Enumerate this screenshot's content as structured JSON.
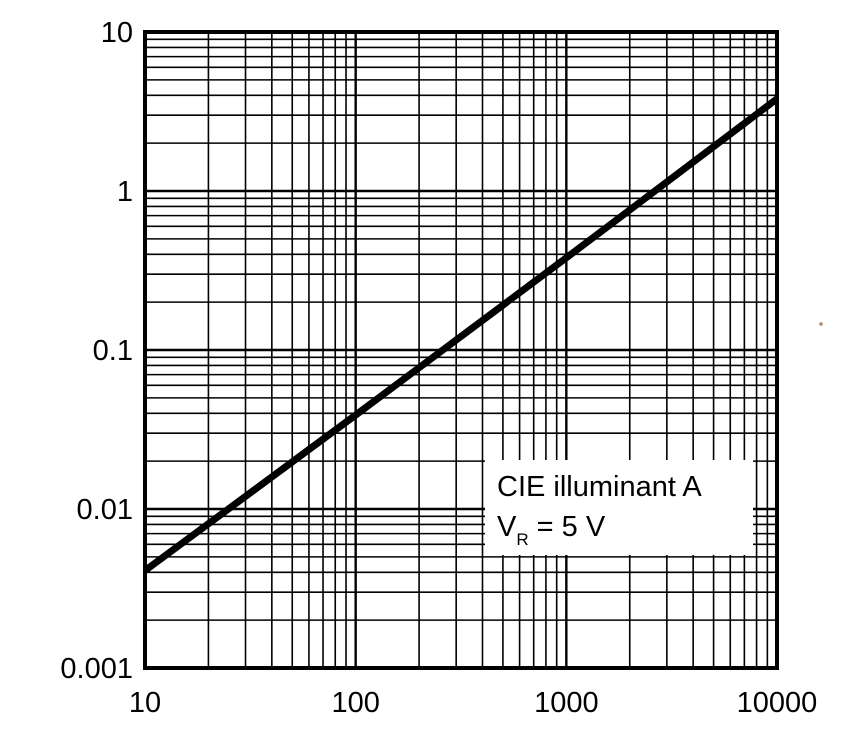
{
  "chart_data": {
    "type": "line",
    "title": "",
    "xlabel": "",
    "ylabel": "",
    "xscale": "log",
    "yscale": "log",
    "xlim": [
      10,
      10000
    ],
    "ylim": [
      0.001,
      10
    ],
    "grid": true,
    "x_ticks": [
      "10",
      "100",
      "1000",
      "10000"
    ],
    "y_ticks": [
      "0.001",
      "0.01",
      "0.1",
      "1",
      "10"
    ],
    "series": [
      {
        "x": [
          10,
          100,
          1000,
          10000
        ],
        "y": [
          0.0041,
          0.039,
          0.38,
          3.8
        ],
        "color": "#000000"
      }
    ],
    "annotation": {
      "line1": "CIE illuminant A",
      "line2_main": "V",
      "line2_sub": "R",
      "line2_rest": " = 5 V"
    }
  }
}
